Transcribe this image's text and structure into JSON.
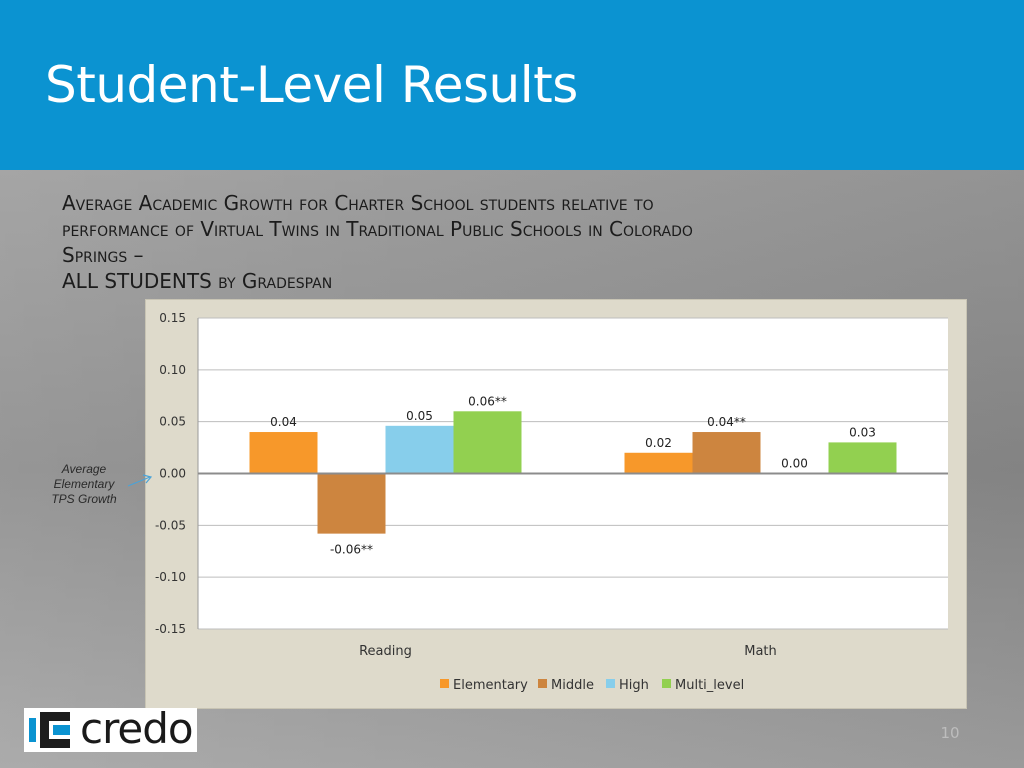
{
  "title": "Student-Level Results",
  "subtitle_lines": [
    "Average Academic Growth for Charter School students relative to",
    "performance of Virtual Twins in Traditional Public Schools in Colorado",
    "Springs –",
    "ALL STUDENTS by Gradespan"
  ],
  "annotation": {
    "line1": "Average",
    "line2": "Elementary",
    "line3": "TPS Growth"
  },
  "logo": {
    "text": "credo"
  },
  "page_number": "10",
  "colors": {
    "header": "#0b93d1",
    "Elementary": "#f7982a",
    "Middle": "#cd853f",
    "High": "#87ceeb",
    "Multi_level": "#92d050"
  },
  "chart_data": {
    "type": "bar",
    "categories": [
      "Reading",
      "Math"
    ],
    "series": [
      {
        "name": "Elementary",
        "values": [
          0.04,
          0.02
        ],
        "labels": [
          "0.04",
          "0.02"
        ]
      },
      {
        "name": "Middle",
        "values": [
          -0.058,
          0.04
        ],
        "labels": [
          "-0.06**",
          "0.04**"
        ]
      },
      {
        "name": "High",
        "values": [
          0.046,
          0.0
        ],
        "labels": [
          "0.05",
          "0.00"
        ]
      },
      {
        "name": "Multi_level",
        "values": [
          0.06,
          0.03
        ],
        "labels": [
          "0.06**",
          "0.03"
        ]
      }
    ],
    "yticks": [
      "0.15",
      "0.10",
      "0.05",
      "0.00",
      "-0.05",
      "-0.10",
      "-0.15"
    ],
    "ylim": [
      -0.15,
      0.15
    ],
    "grid": true,
    "legend": "bottom"
  }
}
